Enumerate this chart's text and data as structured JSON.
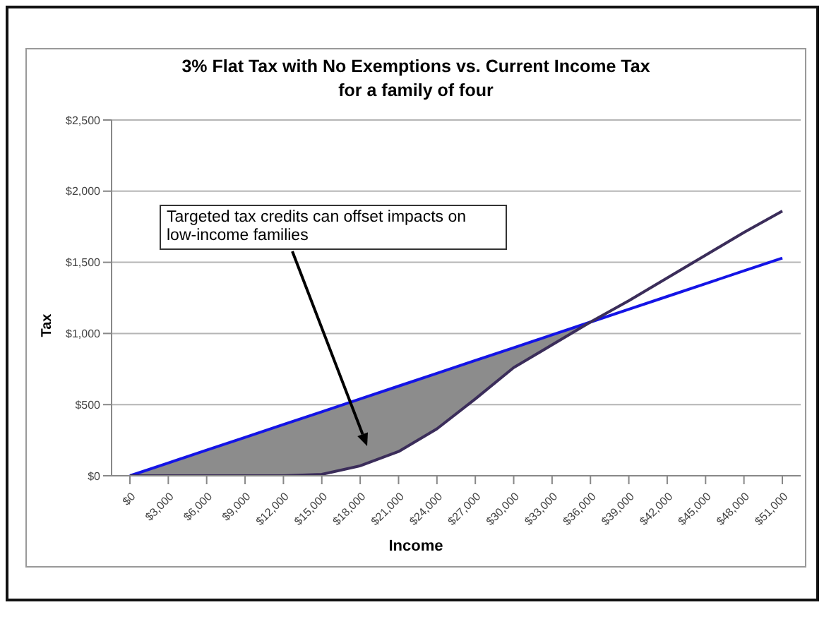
{
  "chart_data": {
    "type": "line",
    "title": "3% Flat Tax with No Exemptions vs. Current Income Tax",
    "subtitle": "for a family of four",
    "xlabel": "Income",
    "ylabel": "Tax",
    "categories": [
      "$0",
      "$3,000",
      "$6,000",
      "$9,000",
      "$12,000",
      "$15,000",
      "$18,000",
      "$21,000",
      "$24,000",
      "$27,000",
      "$30,000",
      "$33,000",
      "$36,000",
      "$39,000",
      "$42,000",
      "$45,000",
      "$48,000",
      "$51,000"
    ],
    "series": [
      {
        "color": "#1414e6",
        "values": [
          0,
          90,
          180,
          270,
          360,
          450,
          540,
          630,
          720,
          810,
          900,
          990,
          1080,
          1170,
          1260,
          1350,
          1440,
          1530
        ],
        "lower": [
          0,
          0,
          0,
          0,
          0,
          10,
          70,
          170,
          330,
          540,
          760,
          920,
          1080,
          null,
          null,
          null,
          null,
          null
        ],
        "upper": [
          0,
          90,
          180,
          270,
          360,
          450,
          540,
          630,
          720,
          810,
          900,
          990,
          1080,
          null,
          null,
          null,
          null,
          null
        ]
      },
      {
        "color": "#3b2d5a",
        "values": [
          0,
          0,
          0,
          0,
          0,
          10,
          70,
          170,
          330,
          540,
          760,
          920,
          1080,
          1230,
          1390,
          1550,
          1710,
          1860
        ]
      }
    ],
    "ylim": [
      0,
      2500
    ],
    "yticks": [
      {
        "value": 0,
        "label": "$0"
      },
      {
        "value": 500,
        "label": "$500"
      },
      {
        "value": 1000,
        "label": "$1,000"
      },
      {
        "value": 1500,
        "label": "$1,500"
      },
      {
        "value": 2000,
        "label": "$2,000"
      },
      {
        "value": 2500,
        "label": "$2,500"
      }
    ],
    "grid": "y",
    "legend": false,
    "marker": "none",
    "line_style": "solid",
    "annotations": [
      "Targeted tax credits can offset impacts on low-income families"
    ]
  }
}
